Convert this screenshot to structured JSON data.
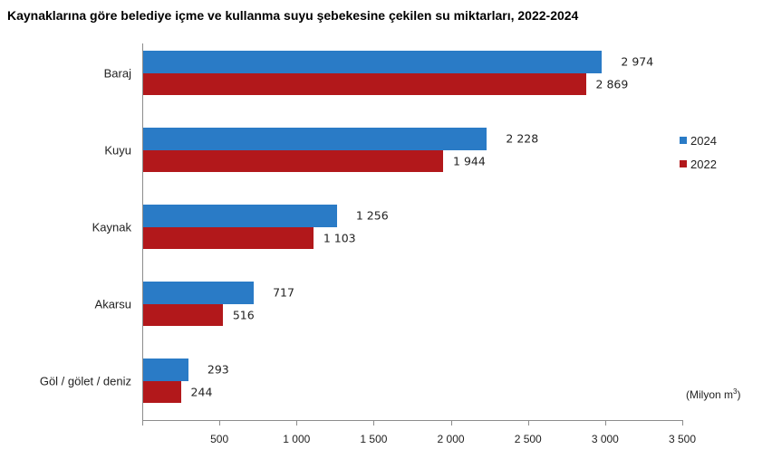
{
  "chart_data": {
    "type": "bar",
    "orientation": "horizontal",
    "title": "Kaynaklarına göre belediye içme ve kullanma suyu şebekesine çekilen su miktarları, 2022-2024",
    "categories": [
      "Baraj",
      "Kuyu",
      "Kaynak",
      "Akarsu",
      "Göl / gölet / deniz"
    ],
    "series": [
      {
        "name": "2024",
        "color": "#2a7bc6",
        "values": [
          2974,
          2228,
          1256,
          717,
          293
        ],
        "labels": [
          "2 974",
          "2 228",
          "1 256",
          "717",
          "293"
        ]
      },
      {
        "name": "2022",
        "color": "#b2181b",
        "values": [
          2869,
          1944,
          1103,
          516,
          244
        ],
        "labels": [
          "2 869",
          "1 944",
          "1 103",
          "516",
          "244"
        ]
      }
    ],
    "xlabel": "",
    "ylabel": "",
    "unit_label": "(Milyon m",
    "unit_sup": "3",
    "unit_close": ")",
    "xlim": [
      0,
      3500
    ],
    "xticks": [
      500,
      1000,
      1500,
      2000,
      2500,
      3000,
      3500
    ],
    "xtick_labels": [
      "500",
      "1 000",
      "1 500",
      "2 000",
      "2 500",
      "3 000",
      "3 500"
    ],
    "grid": false,
    "legend_position": "right"
  }
}
